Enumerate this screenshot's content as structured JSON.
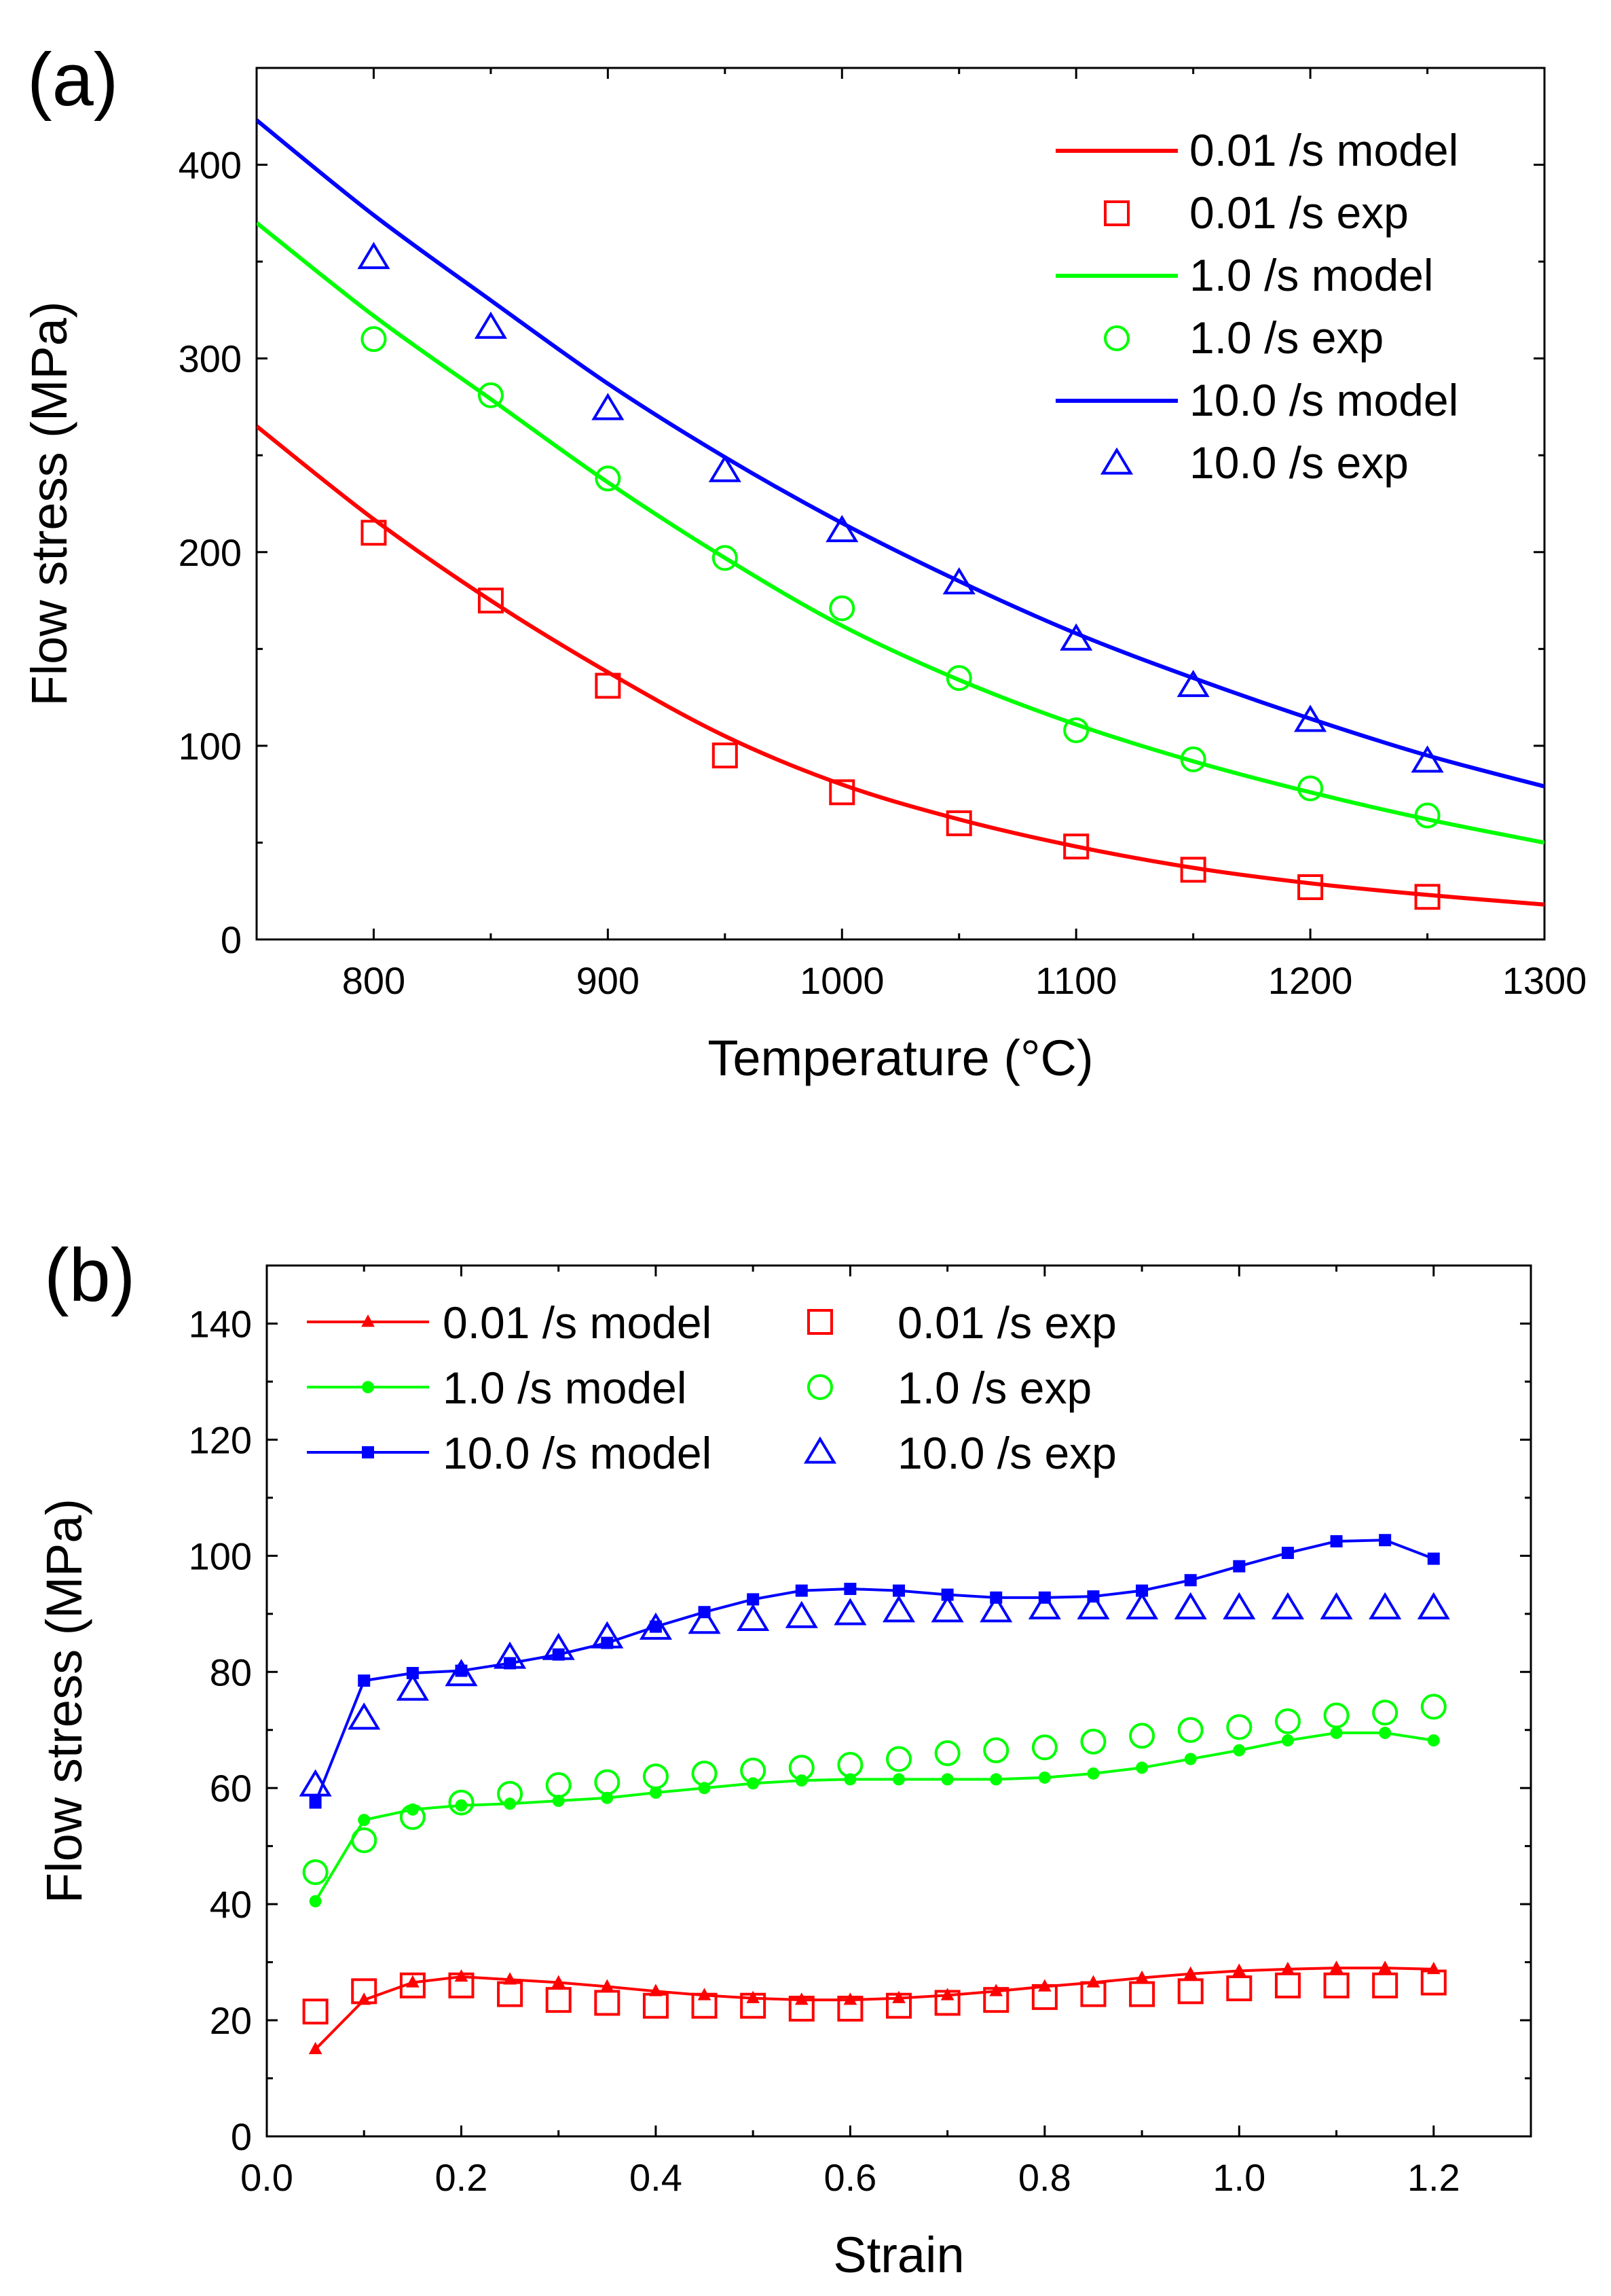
{
  "chart_data": [
    {
      "type": "line",
      "title": "(a)",
      "xlabel": "Temperature (°C)",
      "ylabel": "Flow stress (MPa)",
      "xlim": [
        750,
        1300
      ],
      "ylim": [
        0,
        450
      ],
      "xticks": [
        800,
        900,
        1000,
        1100,
        1200,
        1300
      ],
      "yticks": [
        0,
        100,
        200,
        300,
        400
      ],
      "grid": false,
      "legend_position": "top-right",
      "series": [
        {
          "name": "0.01 /s model",
          "kind": "line",
          "color": "#ff0000",
          "x": [
            750,
            800,
            850,
            900,
            950,
            1000,
            1050,
            1100,
            1150,
            1200,
            1250,
            1300
          ],
          "y": [
            265,
            217,
            175,
            138,
            105,
            80,
            62,
            48,
            37,
            29,
            23,
            18
          ]
        },
        {
          "name": "0.01 /s exp",
          "kind": "marker",
          "marker": "square",
          "color": "#ff0000",
          "x": [
            800,
            850,
            900,
            950,
            1000,
            1050,
            1100,
            1150,
            1200,
            1250
          ],
          "y": [
            210,
            175,
            131,
            95,
            76,
            60,
            48,
            36,
            27,
            22
          ]
        },
        {
          "name": "1.0 /s model",
          "kind": "line",
          "color": "#00ff00",
          "x": [
            750,
            800,
            850,
            900,
            950,
            1000,
            1050,
            1100,
            1150,
            1200,
            1250,
            1300
          ],
          "y": [
            370,
            322,
            279,
            236,
            197,
            162,
            134,
            111,
            92,
            76,
            62,
            50
          ]
        },
        {
          "name": "1.0 /s exp",
          "kind": "marker",
          "marker": "circle",
          "color": "#00ff00",
          "x": [
            800,
            850,
            900,
            950,
            1000,
            1050,
            1100,
            1150,
            1200,
            1250
          ],
          "y": [
            310,
            281,
            238,
            197,
            171,
            135,
            108,
            93,
            78,
            64
          ]
        },
        {
          "name": "10.0 /s model",
          "kind": "line",
          "color": "#0000ff",
          "x": [
            750,
            800,
            850,
            900,
            950,
            1000,
            1050,
            1100,
            1150,
            1200,
            1250,
            1300
          ],
          "y": [
            423,
            374,
            330,
            287,
            249,
            215,
            185,
            158,
            135,
            114,
            95,
            79
          ]
        },
        {
          "name": "10.0 /s exp",
          "kind": "marker",
          "marker": "triangle",
          "color": "#0000ff",
          "x": [
            800,
            850,
            900,
            950,
            1000,
            1050,
            1100,
            1150,
            1200,
            1250
          ],
          "y": [
            352,
            316,
            274,
            242,
            211,
            184,
            155,
            131,
            113,
            92
          ]
        }
      ]
    },
    {
      "type": "line",
      "title": "(b)",
      "xlabel": "Strain",
      "ylabel": "Flow stress (MPa)",
      "xlim": [
        0.0,
        1.3
      ],
      "ylim": [
        0,
        150
      ],
      "xticks": [
        "0.0",
        "0.2",
        "0.4",
        "0.6",
        "0.8",
        "1.0",
        "1.2"
      ],
      "yticks": [
        0,
        20,
        40,
        60,
        80,
        100,
        120,
        140
      ],
      "grid": false,
      "legend_position": "top-left",
      "x": [
        0.05,
        0.1,
        0.15,
        0.2,
        0.25,
        0.3,
        0.35,
        0.4,
        0.45,
        0.5,
        0.55,
        0.6,
        0.65,
        0.7,
        0.75,
        0.8,
        0.85,
        0.9,
        0.95,
        1.0,
        1.05,
        1.1,
        1.15,
        1.2
      ],
      "series": [
        {
          "name": "0.01 /s model",
          "kind": "line+marker",
          "marker": "filled-triangle",
          "color": "#ff0000",
          "values": [
            15,
            23.5,
            26.5,
            27.5,
            27,
            26.5,
            25.8,
            25,
            24.3,
            23.8,
            23.5,
            23.5,
            23.8,
            24.3,
            25,
            25.8,
            26.5,
            27.3,
            28,
            28.5,
            28.8,
            29,
            29,
            28.8
          ]
        },
        {
          "name": "0.01 /s exp",
          "kind": "marker",
          "marker": "square",
          "color": "#ff0000",
          "values": [
            21.5,
            25,
            26,
            26,
            24.5,
            23.5,
            23,
            22.5,
            22.5,
            22.5,
            22,
            22,
            22.5,
            23,
            23.5,
            24,
            24.5,
            24.5,
            25,
            25.5,
            26,
            26,
            26,
            26.5
          ]
        },
        {
          "name": "1.0 /s model",
          "kind": "line+marker",
          "marker": "filled-circle",
          "color": "#00ff00",
          "values": [
            40.5,
            54.5,
            56.3,
            57,
            57.3,
            57.8,
            58.3,
            59.2,
            60,
            60.8,
            61.3,
            61.5,
            61.5,
            61.5,
            61.5,
            61.8,
            62.5,
            63.5,
            65,
            66.5,
            68.2,
            69.5,
            69.5,
            68.2
          ]
        },
        {
          "name": "1.0 /s exp",
          "kind": "marker",
          "marker": "circle",
          "color": "#00ff00",
          "values": [
            45.5,
            51,
            55,
            57.5,
            59,
            60.5,
            61,
            62,
            62.5,
            63,
            63.5,
            64,
            65,
            66,
            66.5,
            67,
            68,
            69,
            70,
            70.5,
            71.5,
            72.5,
            73,
            74
          ]
        },
        {
          "name": "10.0 /s model",
          "kind": "line+marker",
          "marker": "filled-square",
          "color": "#0000ff",
          "values": [
            57.5,
            78.5,
            79.8,
            80.2,
            81.5,
            83,
            85,
            87.8,
            90.3,
            92.5,
            94,
            94.3,
            94,
            93.3,
            92.8,
            92.8,
            93,
            94,
            95.8,
            98.2,
            100.5,
            102.5,
            102.7,
            99.5
          ]
        },
        {
          "name": "10.0 /s exp",
          "kind": "marker",
          "marker": "triangle",
          "color": "#0000ff",
          "values": [
            60.5,
            72,
            77,
            79.5,
            82.5,
            84,
            86,
            87.5,
            88.5,
            89,
            89.5,
            90,
            90.5,
            90.5,
            90.5,
            91,
            91,
            91,
            91,
            91,
            91,
            91,
            91,
            91
          ]
        }
      ]
    }
  ]
}
